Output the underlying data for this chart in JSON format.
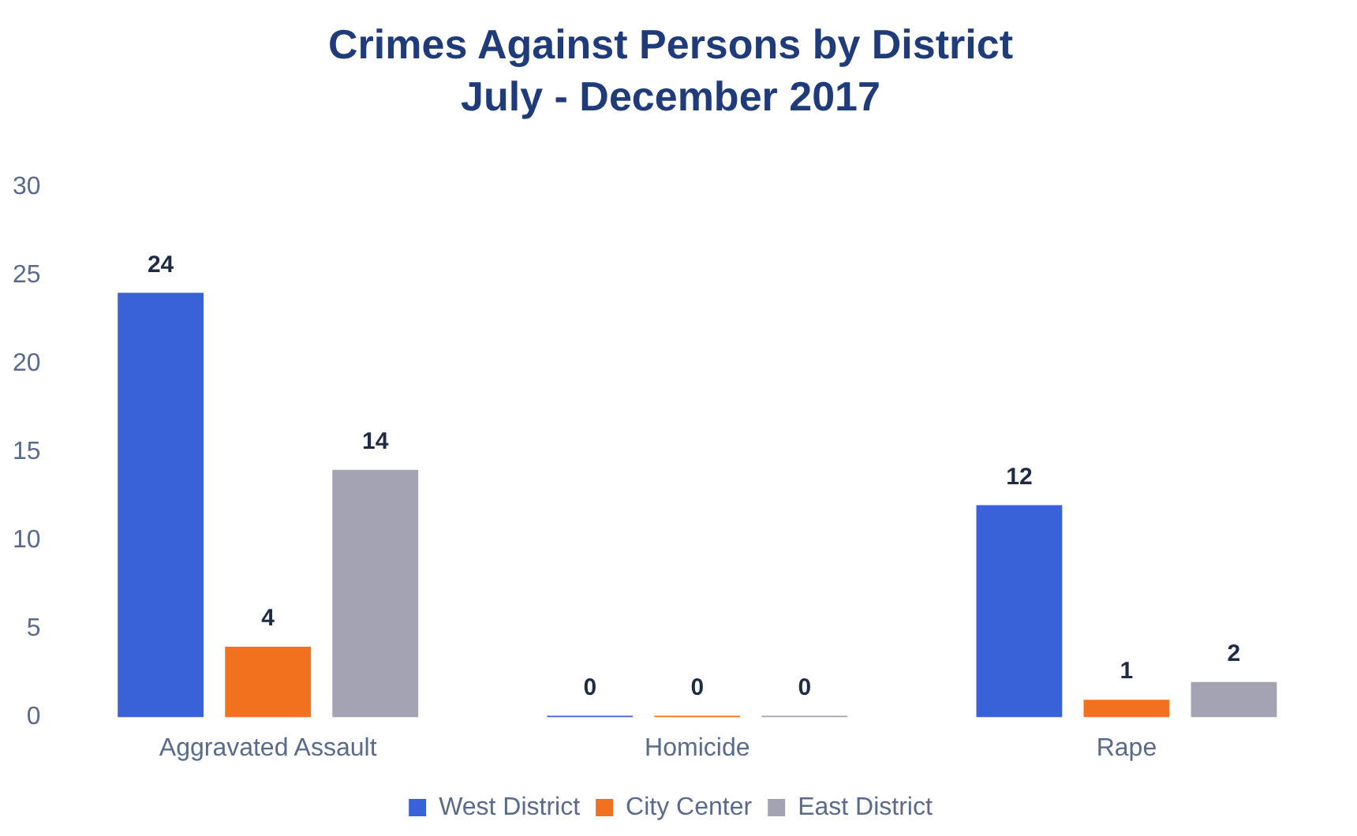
{
  "chart_data": {
    "type": "bar",
    "title": "Crimes Against Persons by District",
    "subtitle": "July - December 2017",
    "categories": [
      "Aggravated Assault",
      "Homicide",
      "Rape"
    ],
    "series": [
      {
        "name": "West District",
        "color": "#3a62d8",
        "values": [
          24,
          0,
          12
        ]
      },
      {
        "name": "City Center",
        "color": "#f2711f",
        "values": [
          4,
          0,
          1
        ]
      },
      {
        "name": "East District",
        "color": "#a3a3b3",
        "values": [
          14,
          0,
          2
        ]
      }
    ],
    "ylim": [
      0,
      30
    ],
    "yticks": [
      0,
      5,
      10,
      15,
      20,
      25,
      30
    ],
    "grid": false,
    "legend": "bottom",
    "data_labels": true
  }
}
